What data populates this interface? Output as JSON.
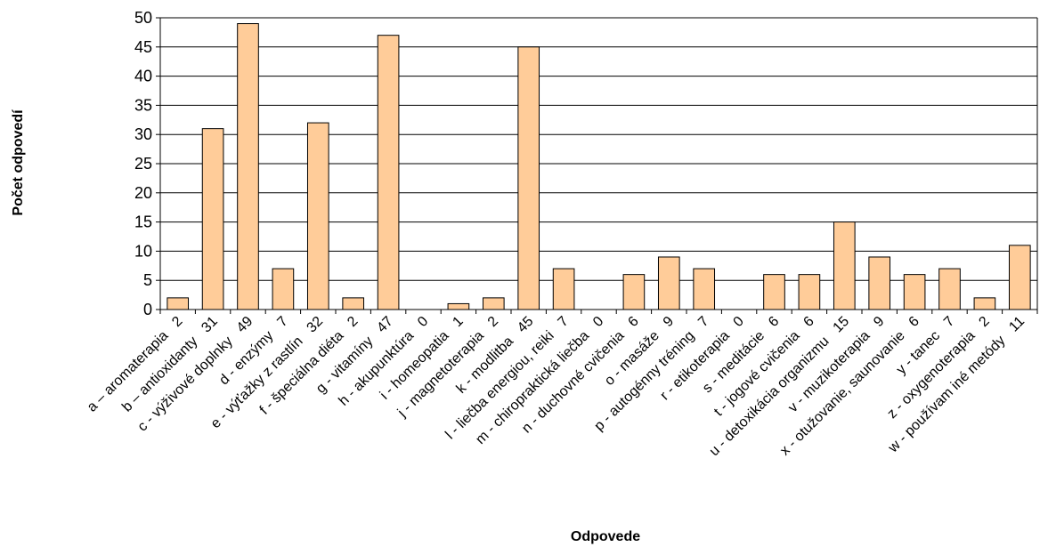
{
  "chart_data": {
    "type": "bar",
    "xlabel": "Odpovede",
    "ylabel": "Počet odpovedí",
    "ylim": [
      0,
      50
    ],
    "yticks": [
      0,
      5,
      10,
      15,
      20,
      25,
      30,
      35,
      40,
      45,
      50
    ],
    "grid": true,
    "legend": "none",
    "bar_color": "#FFCC99",
    "bar_edge_color": "#000000",
    "categories": [
      "a – aromaterapia",
      "b – antioxidanty",
      "c - výživové doplnky",
      "d - enzýmy",
      "e - výťažky z rastlín",
      "f - špeciálna diéta",
      "g - vitamíny",
      "h - akupunktúra",
      "i - homeopatia",
      "j - magnetoterapia",
      "k - modlitba",
      "l - liečba energiou, reiki",
      "m - chiropraktická liečba",
      "n - duchovné cvičenia",
      "o - masáže",
      "p - autogénny tréning",
      "r - etikoterapia",
      "s - meditácie",
      "t - jogové cvičenia",
      "u - detoxikácia organizmu",
      "v - muzikoterapia",
      "x - otužovanie, saunovanie",
      "y - tanec",
      "z - oxygenoterapia",
      "w - používam iné metódy"
    ],
    "values": [
      2,
      31,
      49,
      7,
      32,
      2,
      47,
      0,
      1,
      2,
      45,
      7,
      0,
      6,
      9,
      7,
      0,
      6,
      6,
      15,
      9,
      6,
      7,
      2,
      11
    ]
  }
}
